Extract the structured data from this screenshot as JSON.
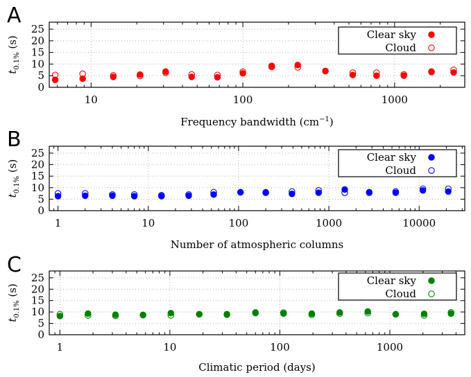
{
  "figure": {
    "y_label_main": "t",
    "y_label_sub": "0.1%",
    "y_label_unit": " (s)"
  },
  "chart_data": [
    {
      "type": "scatter",
      "panel_letter": "A",
      "xlabel_main": "Frequency bandwidth (cm",
      "xlabel_sup": "−1",
      "xlabel_end": ")",
      "x_scale": "log",
      "xlim": [
        5.3,
        2900
      ],
      "ylim": [
        0,
        28
      ],
      "x_ticks": [
        10,
        100,
        1000
      ],
      "x_tick_labels": [
        "10",
        "100",
        "1000"
      ],
      "y_ticks": [
        0,
        5,
        10,
        15,
        20,
        25
      ],
      "y_tick_labels": [
        "0",
        "5",
        "10",
        "15",
        "20",
        "25"
      ],
      "grid": true,
      "legend_position": "top-right",
      "color": "#ff0000",
      "series": [
        {
          "name": "Clear sky",
          "marker": "filled-circle",
          "x": [
            5.8,
            8.8,
            14,
            21,
            31,
            46,
            68,
            100,
            155,
            230,
            350,
            530,
            760,
            1150,
            1750,
            2450
          ],
          "y": [
            3.2,
            3.7,
            4.5,
            5.5,
            6.8,
            4.5,
            4.3,
            6.0,
            9.2,
            9.6,
            7.0,
            5.3,
            5.0,
            5.0,
            6.8,
            6.4
          ]
        },
        {
          "name": "Cloud",
          "marker": "open-circle",
          "x": [
            5.8,
            8.8,
            14,
            21,
            31,
            46,
            68,
            100,
            155,
            230,
            350,
            530,
            760,
            1150,
            1750,
            2450
          ],
          "y": [
            5.3,
            5.8,
            5.1,
            4.9,
            6.3,
            5.5,
            5.3,
            6.7,
            8.8,
            8.6,
            7.0,
            6.3,
            6.3,
            5.5,
            6.6,
            7.5
          ]
        }
      ]
    },
    {
      "type": "scatter",
      "panel_letter": "B",
      "xlabel_main": "Number of atmospheric columns",
      "xlabel_sup": "",
      "xlabel_end": "",
      "x_scale": "log",
      "xlim": [
        0.8,
        32000
      ],
      "ylim": [
        0,
        28
      ],
      "x_ticks": [
        1,
        10,
        100,
        1000,
        10000
      ],
      "x_tick_labels": [
        "1",
        "10",
        "100",
        "1000",
        "10000"
      ],
      "y_ticks": [
        0,
        5,
        10,
        15,
        20,
        25
      ],
      "y_tick_labels": [
        "0",
        "5",
        "10",
        "15",
        "20",
        "25"
      ],
      "grid": true,
      "legend_position": "top-right",
      "color": "#0000ff",
      "series": [
        {
          "name": "Clear sky",
          "marker": "filled-circle",
          "x": [
            1,
            2,
            4,
            7,
            14,
            28,
            53,
            105,
            200,
            390,
            770,
            1500,
            2800,
            5500,
            11000,
            21000
          ],
          "y": [
            6.3,
            6.5,
            6.5,
            6.3,
            6.3,
            6.5,
            7.0,
            8.0,
            8.0,
            7.3,
            7.8,
            9.2,
            7.8,
            7.8,
            8.8,
            8.3
          ]
        },
        {
          "name": "Cloud",
          "marker": "open-circle",
          "x": [
            1,
            2,
            4,
            7,
            14,
            28,
            53,
            105,
            200,
            390,
            770,
            1500,
            2800,
            5500,
            11000,
            21000
          ],
          "y": [
            7.5,
            7.5,
            7.0,
            7.0,
            6.7,
            7.0,
            8.0,
            8.0,
            7.8,
            8.3,
            8.8,
            7.8,
            8.0,
            8.3,
            9.5,
            9.5
          ]
        }
      ]
    },
    {
      "type": "scatter",
      "panel_letter": "C",
      "xlabel_main": "Climatic period (days)",
      "xlabel_sup": "",
      "xlabel_end": "",
      "x_scale": "log",
      "xlim": [
        0.8,
        4800
      ],
      "ylim": [
        0,
        28
      ],
      "x_ticks": [
        1,
        10,
        100,
        1000
      ],
      "x_tick_labels": [
        "1",
        "10",
        "100",
        "1000"
      ],
      "y_ticks": [
        0,
        5,
        10,
        15,
        20,
        25
      ],
      "y_tick_labels": [
        "0",
        "5",
        "10",
        "15",
        "20",
        "25"
      ],
      "grid": true,
      "legend_position": "top-right",
      "color": "#008000",
      "series": [
        {
          "name": "Clear sky",
          "marker": "filled-circle",
          "x": [
            1,
            1.8,
            3.2,
            5.7,
            10.2,
            18.5,
            33,
            60,
            108,
            195,
            350,
            630,
            1130,
            2050,
            3600
          ],
          "y": [
            8.2,
            9.3,
            8.8,
            8.6,
            9.5,
            9.0,
            8.8,
            9.8,
            9.3,
            9.3,
            9.8,
            10.2,
            9.0,
            9.2,
            9.3
          ]
        },
        {
          "name": "Cloud",
          "marker": "open-circle",
          "x": [
            1,
            1.8,
            3.2,
            5.7,
            10.2,
            18.5,
            33,
            60,
            108,
            195,
            350,
            630,
            1130,
            2050,
            3600
          ],
          "y": [
            9.0,
            8.5,
            8.3,
            8.7,
            8.5,
            9.0,
            9.0,
            9.5,
            9.7,
            8.8,
            9.3,
            9.5,
            9.0,
            8.5,
            9.8
          ]
        }
      ]
    }
  ]
}
